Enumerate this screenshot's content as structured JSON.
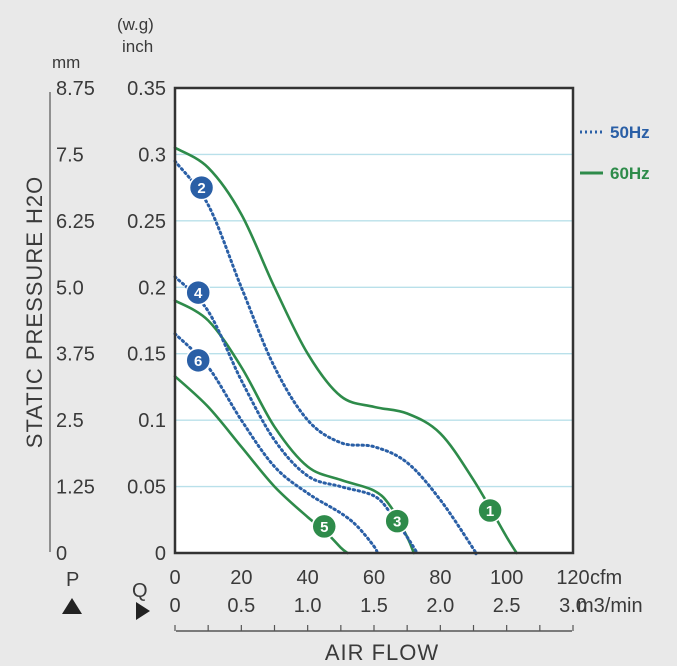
{
  "chart_data": {
    "type": "line",
    "ylabel": "STATIC PRESSURE H2O",
    "xlabel": "AIR FLOW",
    "y_units": {
      "left": "mm",
      "right_top": "(w.g)",
      "right_bottom": "inch"
    },
    "y_ticks_mm": [
      "8.75",
      "7.5",
      "6.25",
      "5.0",
      "3.75",
      "2.5",
      "1.25",
      "0"
    ],
    "y_ticks_inch": [
      "0.35",
      "0.3",
      "0.25",
      "0.2",
      "0.15",
      "0.1",
      "0.05",
      "0"
    ],
    "x_ticks_cfm": [
      "0",
      "20",
      "40",
      "60",
      "80",
      "100",
      "120"
    ],
    "x_unit_cfm": "cfm",
    "x_ticks_m3": [
      "0",
      "0.5",
      "1.0",
      "1.5",
      "2.0",
      "2.5",
      "3.0"
    ],
    "x_unit_m3": "m3/min",
    "p_label": "P",
    "q_label": "Q",
    "xlim": [
      0,
      120
    ],
    "ylim": [
      0,
      0.35
    ],
    "grid": true,
    "legend": {
      "placement": "right",
      "items": [
        {
          "label": "50Hz",
          "style": "dotted",
          "color": "#2a5fa6"
        },
        {
          "label": "60Hz",
          "style": "solid",
          "color": "#2e8b4a"
        }
      ]
    },
    "colors": {
      "hz50": "#2a5fa6",
      "hz60": "#2e8b4a",
      "grid": "#b9e0ea"
    },
    "series": [
      {
        "name": "1",
        "freq": "60Hz",
        "points": [
          [
            0,
            0.305
          ],
          [
            10,
            0.29
          ],
          [
            20,
            0.255
          ],
          [
            30,
            0.2
          ],
          [
            40,
            0.15
          ],
          [
            50,
            0.118
          ],
          [
            60,
            0.11
          ],
          [
            70,
            0.105
          ],
          [
            80,
            0.09
          ],
          [
            90,
            0.055
          ],
          [
            100,
            0.012
          ],
          [
            103,
            0
          ]
        ],
        "label_at": [
          95,
          0.032
        ]
      },
      {
        "name": "2",
        "freq": "50Hz",
        "points": [
          [
            0,
            0.295
          ],
          [
            10,
            0.262
          ],
          [
            20,
            0.2
          ],
          [
            30,
            0.14
          ],
          [
            40,
            0.1
          ],
          [
            50,
            0.083
          ],
          [
            60,
            0.08
          ],
          [
            70,
            0.068
          ],
          [
            80,
            0.04
          ],
          [
            90,
            0.003
          ],
          [
            90.5,
            0
          ]
        ],
        "label_at": [
          8,
          0.275
        ]
      },
      {
        "name": "3",
        "freq": "60Hz",
        "points": [
          [
            0,
            0.19
          ],
          [
            10,
            0.175
          ],
          [
            20,
            0.14
          ],
          [
            30,
            0.095
          ],
          [
            40,
            0.065
          ],
          [
            50,
            0.055
          ],
          [
            60,
            0.047
          ],
          [
            65,
            0.035
          ],
          [
            70,
            0.012
          ],
          [
            72,
            0
          ]
        ],
        "label_at": [
          67,
          0.024
        ]
      },
      {
        "name": "4",
        "freq": "50Hz",
        "points": [
          [
            0,
            0.208
          ],
          [
            10,
            0.182
          ],
          [
            20,
            0.13
          ],
          [
            30,
            0.085
          ],
          [
            40,
            0.058
          ],
          [
            50,
            0.05
          ],
          [
            60,
            0.043
          ],
          [
            65,
            0.03
          ],
          [
            70,
            0.012
          ],
          [
            73,
            0
          ]
        ],
        "label_at": [
          7,
          0.196
        ]
      },
      {
        "name": "5",
        "freq": "60Hz",
        "points": [
          [
            0,
            0.133
          ],
          [
            10,
            0.11
          ],
          [
            20,
            0.08
          ],
          [
            30,
            0.05
          ],
          [
            40,
            0.027
          ],
          [
            45,
            0.017
          ],
          [
            50,
            0.004
          ],
          [
            52,
            0
          ]
        ],
        "label_at": [
          45,
          0.02
        ]
      },
      {
        "name": "6",
        "freq": "50Hz",
        "points": [
          [
            0,
            0.165
          ],
          [
            10,
            0.14
          ],
          [
            20,
            0.1
          ],
          [
            30,
            0.065
          ],
          [
            40,
            0.045
          ],
          [
            50,
            0.03
          ],
          [
            55,
            0.02
          ],
          [
            60,
            0.005
          ],
          [
            61,
            0
          ]
        ],
        "label_at": [
          7,
          0.145
        ]
      }
    ]
  }
}
